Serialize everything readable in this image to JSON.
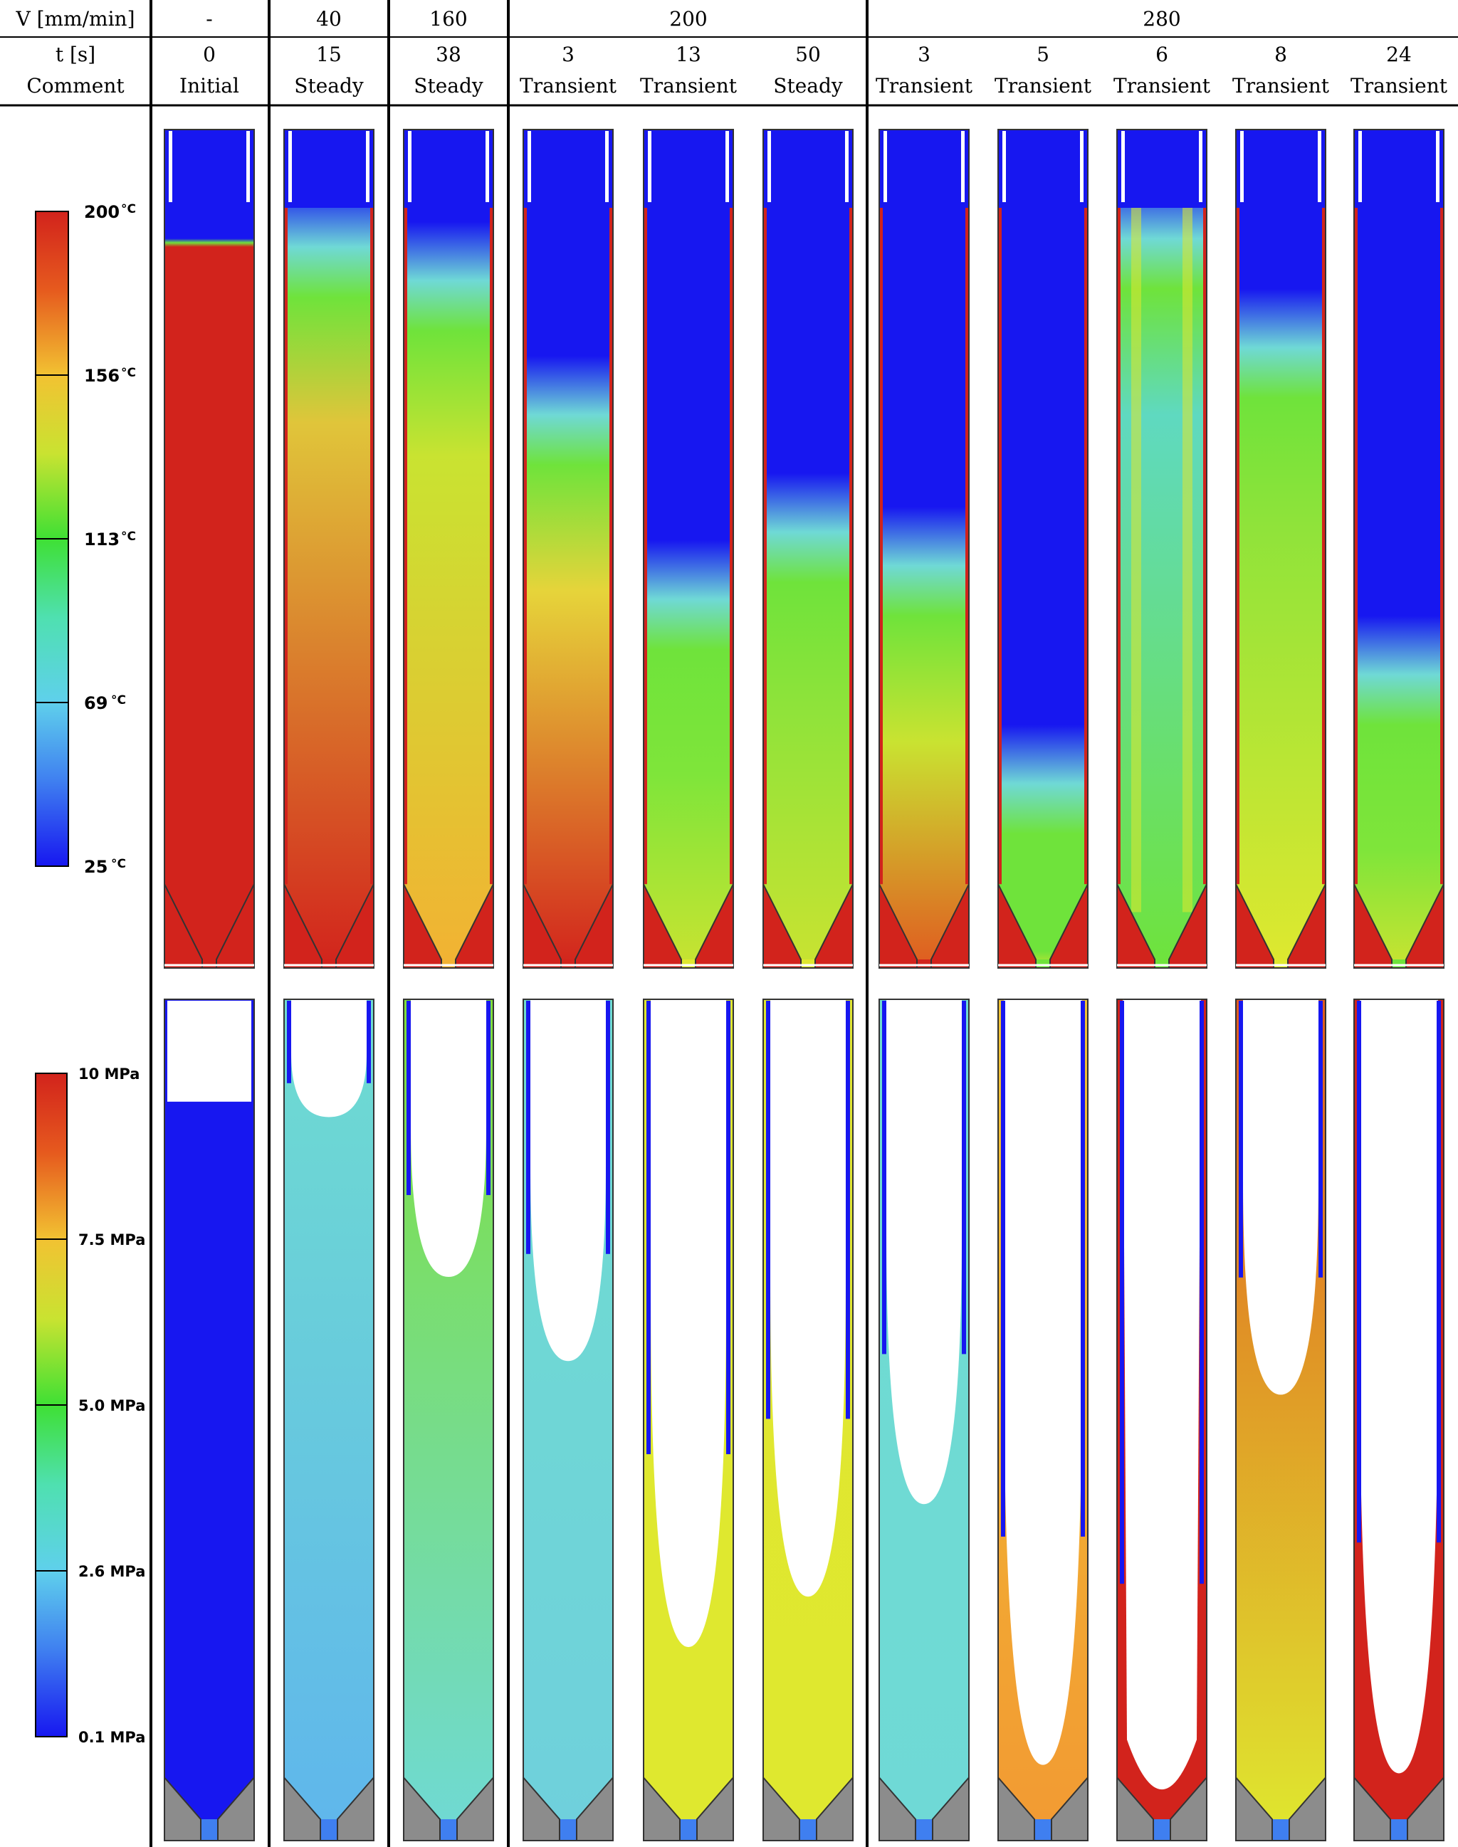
{
  "header": {
    "row_labels": {
      "velocity": "V [mm/min]",
      "time": "t [s]",
      "comment": "Comment"
    },
    "velocity_groups": [
      "-",
      "40",
      "160",
      "200",
      "280"
    ],
    "cases": [
      {
        "t": "0",
        "comment": "Initial",
        "velocity_group": 0
      },
      {
        "t": "15",
        "comment": "Steady",
        "velocity_group": 1
      },
      {
        "t": "38",
        "comment": "Steady",
        "velocity_group": 2
      },
      {
        "t": "3",
        "comment": "Transient",
        "velocity_group": 3
      },
      {
        "t": "13",
        "comment": "Transient",
        "velocity_group": 3
      },
      {
        "t": "50",
        "comment": "Steady",
        "velocity_group": 3
      },
      {
        "t": "3",
        "comment": "Transient",
        "velocity_group": 4
      },
      {
        "t": "5",
        "comment": "Transient",
        "velocity_group": 4
      },
      {
        "t": "6",
        "comment": "Transient",
        "velocity_group": 4
      },
      {
        "t": "8",
        "comment": "Transient",
        "velocity_group": 4
      },
      {
        "t": "24",
        "comment": "Transient",
        "velocity_group": 4
      }
    ]
  },
  "temperature_scale": {
    "ticks": [
      {
        "value": "200",
        "unit": "°C"
      },
      {
        "value": "156",
        "unit": "°C"
      },
      {
        "value": "113",
        "unit": "°C"
      },
      {
        "value": "69",
        "unit": "°C"
      },
      {
        "value": "25",
        "unit": "°C"
      }
    ]
  },
  "pressure_scale": {
    "ticks": [
      "10 MPa",
      "7.5 MPa",
      "5.0 MPa",
      "2.6 MPa",
      "0.1 MPa"
    ]
  },
  "colors": {
    "red": "#d2231c",
    "orange": "#f29a33",
    "yellow": "#dfe82f",
    "green": "#6fe33b",
    "cyan": "#6fd9d6",
    "light_blue": "#5fb6ec",
    "blue": "#1717f0",
    "grey": "#8c8c8c"
  },
  "temperature_fields": [
    {
      "front": 0.13,
      "sharp": true,
      "mid": "#d2231c",
      "low": "#d2231c",
      "outlet": "#d2231c"
    },
    {
      "front": 0.1,
      "sharp": false,
      "mid": "#e0c53a",
      "low": "#d2231c",
      "outlet": "#d2231c"
    },
    {
      "front": 0.14,
      "sharp": false,
      "mid": "#c9e331",
      "low": "#f2b233",
      "outlet": "#f2b233"
    },
    {
      "front": 0.3,
      "sharp": false,
      "mid": "#e6d43a",
      "low": "#d2231c",
      "outlet": "#d2231c"
    },
    {
      "front": 0.52,
      "sharp": false,
      "mid": "#7fe53a",
      "low": "#c9e331",
      "outlet": "#dfe82f"
    },
    {
      "front": 0.44,
      "sharp": false,
      "mid": "#8fe33a",
      "low": "#c9e331",
      "outlet": "#dfe82f"
    },
    {
      "front": 0.48,
      "sharp": false,
      "mid": "#c9e331",
      "low": "#e05a20",
      "outlet": "#d2231c"
    },
    {
      "front": 0.74,
      "sharp": false,
      "mid": "#6fe33b",
      "low": "#c9e331",
      "outlet": "#6fe33b"
    },
    {
      "front": 0.09,
      "sharp": false,
      "mid": "#5fd9c0",
      "low": "#6fe33b",
      "outlet": "#6fe33b",
      "channel": true
    },
    {
      "front": 0.22,
      "sharp": false,
      "mid": "#8fe33a",
      "low": "#dfe82f",
      "outlet": "#dfe82f"
    },
    {
      "front": 0.61,
      "sharp": false,
      "mid": "#7fe53a",
      "low": "#c9e331",
      "outlet": "#6fe33b"
    }
  ],
  "pressure_fields": [
    {
      "front": 0.12,
      "flat": true,
      "top": "#1717f0",
      "bottom": "#1717f0"
    },
    {
      "front": 0.14,
      "flat": false,
      "top": "#6fdcd0",
      "bottom": "#5fb6ec"
    },
    {
      "front": 0.33,
      "flat": false,
      "top": "#7fe03a",
      "bottom": "#6fd9d6"
    },
    {
      "front": 0.43,
      "flat": false,
      "top": "#6fdcd0",
      "bottom": "#6fd0dc"
    },
    {
      "front": 0.77,
      "flat": false,
      "top": "#dfe82f",
      "bottom": "#dfe82f"
    },
    {
      "front": 0.71,
      "flat": false,
      "top": "#e0e630",
      "bottom": "#dfe82f"
    },
    {
      "front": 0.6,
      "flat": false,
      "top": "#6fdcd0",
      "bottom": "#6fd9d6"
    },
    {
      "front": 0.91,
      "flat": false,
      "top": "#f0c233",
      "bottom": "#f29a33",
      "thin": true
    },
    {
      "front": 0.99,
      "flat": false,
      "top": "#d2231c",
      "bottom": "#d2231c",
      "thin": true,
      "wall_only": true
    },
    {
      "front": 0.47,
      "flat": false,
      "top": "#e05a20",
      "bottom": "#dfe82f"
    },
    {
      "front": 0.92,
      "flat": false,
      "top": "#d2231c",
      "bottom": "#d2231c",
      "thin": true
    }
  ]
}
